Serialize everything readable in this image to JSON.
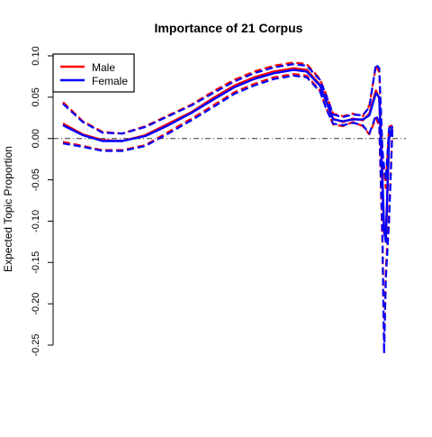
{
  "chart_data": {
    "type": "line",
    "title": "Importance of 21 Corpus",
    "xlabel": "",
    "ylabel": "Expected Topic Proportion",
    "x_axis_visible": false,
    "xlim": [
      0,
      1
    ],
    "ylim": [
      -0.25,
      0.1
    ],
    "y_ticks": [
      0.1,
      0.05,
      0.0,
      -0.05,
      -0.1,
      -0.15,
      -0.2,
      -0.25
    ],
    "y_tick_labels": [
      "0.10",
      "0.05",
      "0.00",
      "-0.05",
      "-0.10",
      "-0.15",
      "-0.20",
      "-0.25"
    ],
    "reference_line": {
      "y": 0,
      "style": "dash-dot",
      "color": "#333333"
    },
    "legend": {
      "position": "top-left",
      "entries": [
        "Male",
        "Female"
      ]
    },
    "grid": false,
    "series": [
      {
        "name": "Male",
        "color": "#ff0000",
        "x": [
          0.0,
          0.06,
          0.12,
          0.18,
          0.25,
          0.32,
          0.39,
          0.46,
          0.52,
          0.58,
          0.64,
          0.7,
          0.74,
          0.78,
          0.8,
          0.82,
          0.85,
          0.88,
          0.91,
          0.93,
          0.95,
          0.96,
          0.97,
          0.975,
          0.98,
          0.99,
          1.0
        ],
        "values": [
          0.018,
          0.005,
          -0.002,
          -0.003,
          0.004,
          0.018,
          0.032,
          0.05,
          0.064,
          0.074,
          0.081,
          0.085,
          0.083,
          0.065,
          0.045,
          0.024,
          0.02,
          0.024,
          0.022,
          0.03,
          0.058,
          0.048,
          -0.06,
          -0.115,
          -0.12,
          0.0,
          0.012
        ],
        "ci_lower": [
          -0.004,
          -0.009,
          -0.014,
          -0.014,
          -0.008,
          0.008,
          0.024,
          0.041,
          0.056,
          0.066,
          0.074,
          0.078,
          0.076,
          0.058,
          0.036,
          0.017,
          0.015,
          0.02,
          0.015,
          0.005,
          0.025,
          0.015,
          -0.13,
          -0.26,
          -0.16,
          -0.09,
          0.01
        ],
        "ci_upper": [
          0.044,
          0.021,
          0.008,
          0.006,
          0.015,
          0.028,
          0.041,
          0.058,
          0.071,
          0.081,
          0.088,
          0.092,
          0.09,
          0.072,
          0.052,
          0.03,
          0.027,
          0.03,
          0.027,
          0.04,
          0.088,
          0.08,
          -0.02,
          -0.04,
          -0.06,
          0.014,
          0.016
        ]
      },
      {
        "name": "Female",
        "color": "#0000ff",
        "x": [
          0.0,
          0.06,
          0.12,
          0.18,
          0.25,
          0.32,
          0.39,
          0.46,
          0.52,
          0.58,
          0.64,
          0.7,
          0.74,
          0.78,
          0.8,
          0.82,
          0.85,
          0.88,
          0.91,
          0.93,
          0.95,
          0.96,
          0.97,
          0.975,
          0.98,
          0.99,
          1.0
        ],
        "values": [
          0.016,
          0.004,
          -0.003,
          -0.003,
          0.003,
          0.016,
          0.031,
          0.048,
          0.062,
          0.072,
          0.079,
          0.083,
          0.081,
          0.064,
          0.044,
          0.023,
          0.021,
          0.023,
          0.023,
          0.028,
          0.055,
          0.05,
          -0.05,
          -0.11,
          -0.125,
          0.0,
          0.015
        ],
        "ci_lower": [
          -0.006,
          -0.01,
          -0.015,
          -0.015,
          -0.009,
          0.006,
          0.022,
          0.039,
          0.054,
          0.064,
          0.072,
          0.076,
          0.074,
          0.057,
          0.035,
          0.018,
          0.016,
          0.019,
          0.016,
          0.006,
          0.028,
          0.02,
          -0.12,
          -0.26,
          -0.17,
          -0.1,
          0.012
        ],
        "ci_upper": [
          0.042,
          0.02,
          0.007,
          0.006,
          0.014,
          0.027,
          0.04,
          0.056,
          0.069,
          0.079,
          0.086,
          0.09,
          0.088,
          0.071,
          0.051,
          0.029,
          0.026,
          0.029,
          0.028,
          0.038,
          0.09,
          0.085,
          -0.015,
          -0.035,
          -0.05,
          0.012,
          0.018
        ]
      }
    ]
  }
}
